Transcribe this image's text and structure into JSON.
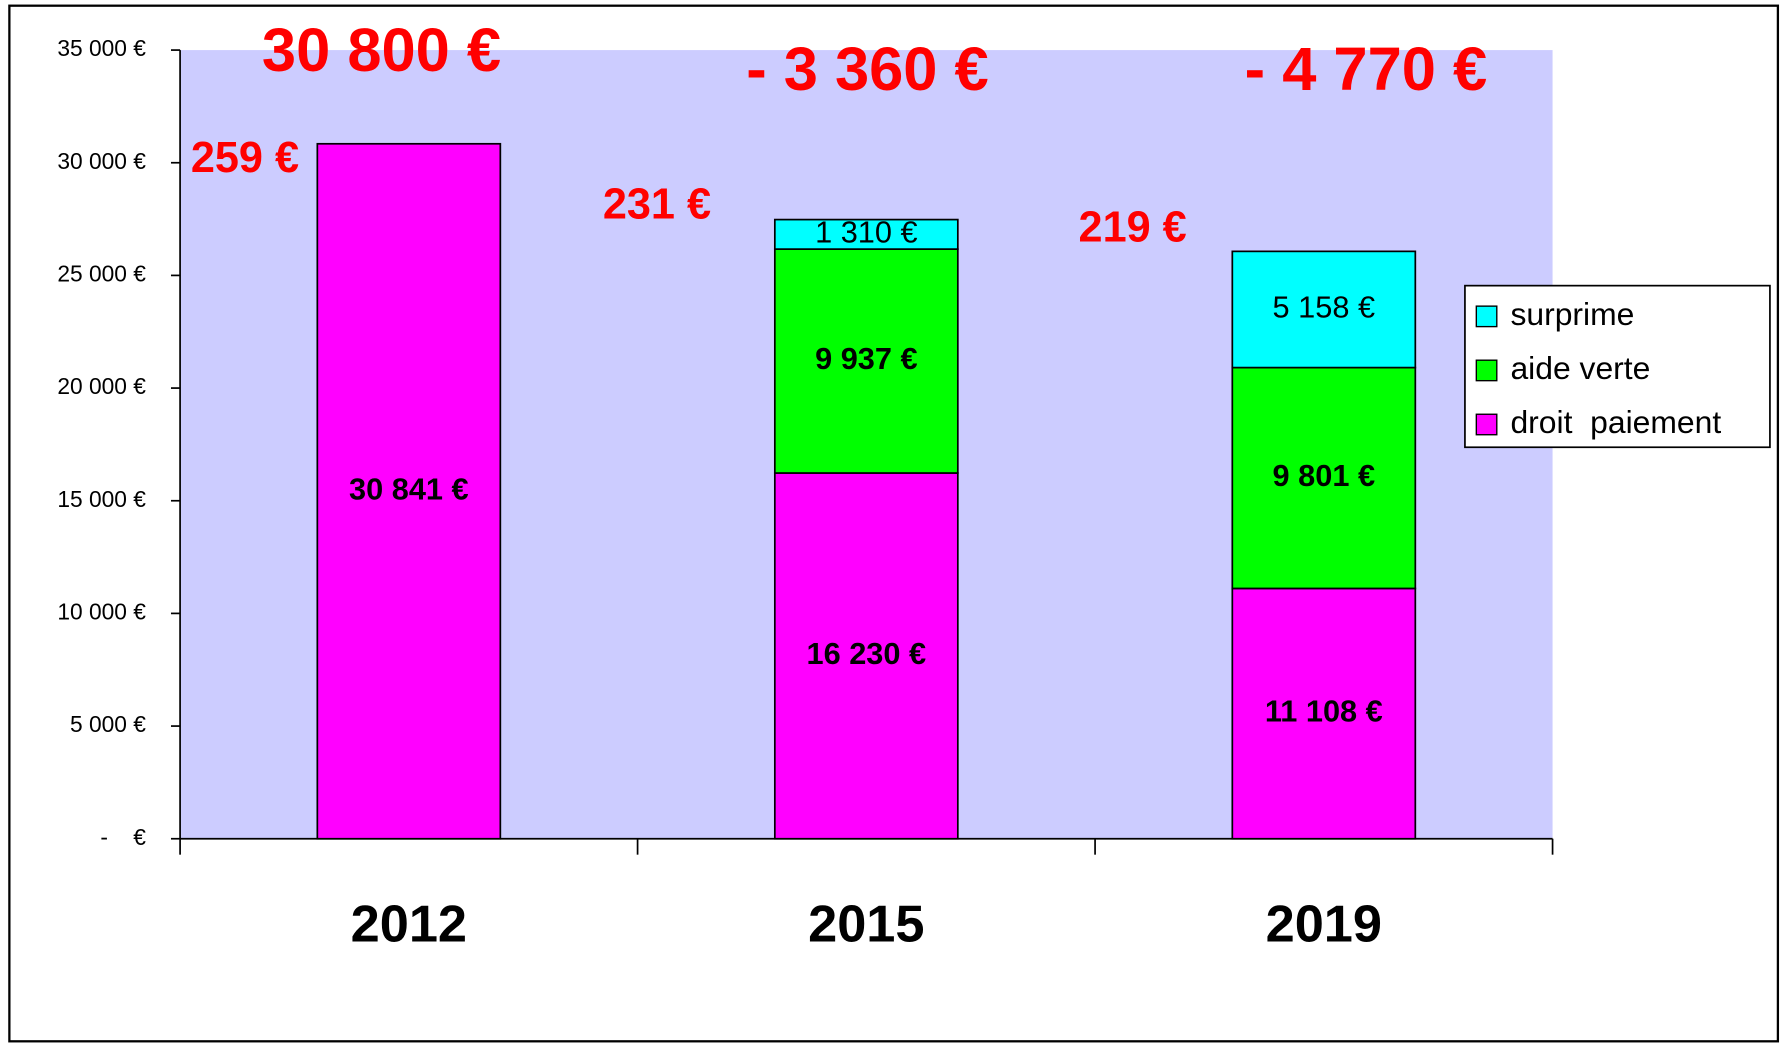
{
  "chart_data": {
    "type": "stacked_bar",
    "categories": [
      "2012",
      "2015",
      "2019"
    ],
    "series": [
      {
        "name": "droit  paiement",
        "color": "#ff00ff",
        "values": [
          30841,
          16230,
          11108
        ],
        "value_labels": [
          "30 841 €",
          "16 230 €",
          "11 108 €"
        ]
      },
      {
        "name": "aide verte",
        "color": "#00ff00",
        "values": [
          null,
          9937,
          9801
        ],
        "value_labels": [
          null,
          "9 937 €",
          "9 801 €"
        ]
      },
      {
        "name": "surprime",
        "color": "#00ffff",
        "values": [
          null,
          1310,
          5158
        ],
        "value_labels": [
          null,
          "1 310 €",
          "5 158 €"
        ]
      }
    ],
    "ylim": [
      0,
      35000
    ],
    "yticks": [
      {
        "value": 0,
        "label": "-    €"
      },
      {
        "value": 5000,
        "label": "5 000 €"
      },
      {
        "value": 10000,
        "label": "10 000 €"
      },
      {
        "value": 15000,
        "label": "15 000 €"
      },
      {
        "value": 20000,
        "label": "20 000 €"
      },
      {
        "value": 25000,
        "label": "25 000 €"
      },
      {
        "value": 30000,
        "label": "30 000 €"
      },
      {
        "value": 35000,
        "label": "35 000 €"
      }
    ],
    "annotations": [
      "30 800 €",
      "- 3 360 €",
      "- 4 770 €",
      "259 €",
      "231 €",
      "219 €"
    ],
    "legend": "right",
    "plot_background": "#ccccff"
  }
}
